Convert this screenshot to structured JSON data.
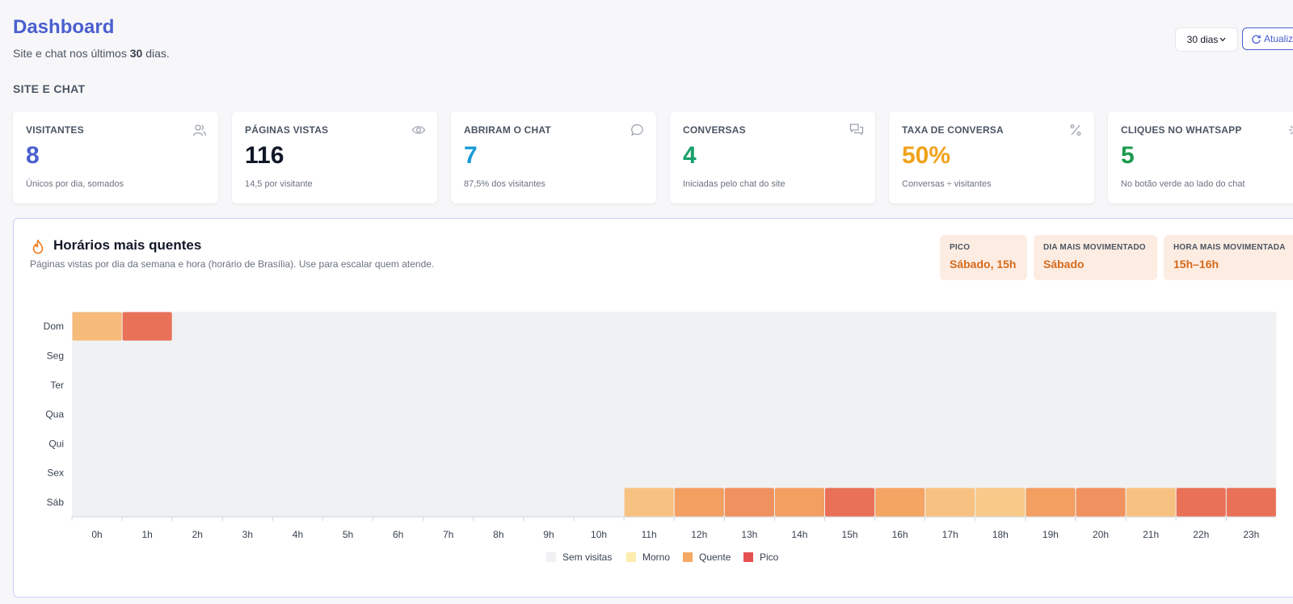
{
  "header": {
    "title": "Dashboard",
    "subtitle_prefix": "Site e chat nos últimos ",
    "subtitle_days": "30",
    "subtitle_suffix": " dias.",
    "range_select": "30 dias",
    "refresh_label": "Atualizar"
  },
  "section_label": "SITE E CHAT",
  "kpis": [
    {
      "label": "VISITANTES",
      "value": "8",
      "note": "Únicos por dia, somados",
      "icon": "users-icon",
      "color": "#4a5fcf"
    },
    {
      "label": "PÁGINAS VISTAS",
      "value": "116",
      "note": "14,5 por visitante",
      "icon": "eye-icon",
      "color": "#111827"
    },
    {
      "label": "ABRIRAM O CHAT",
      "value": "7",
      "note": "87,5% dos visitantes",
      "icon": "chat-bubble-icon",
      "color": "#1a9bd7"
    },
    {
      "label": "CONVERSAS",
      "value": "4",
      "note": "Iniciadas pelo chat do site",
      "icon": "conversations-icon",
      "color": "#18a06b"
    },
    {
      "label": "TAXA DE CONVERSA",
      "value": "50%",
      "note": "Conversas ÷ visitantes",
      "icon": "percent-icon",
      "color": "#f0a21a"
    },
    {
      "label": "CLIQUES NO WHATSAPP",
      "value": "5",
      "note": "No botão verde ao lado do chat",
      "icon": "sparkle-icon",
      "color": "#1b9a4b"
    }
  ],
  "heatmap_card": {
    "title": "Horários mais quentes",
    "subtitle": "Páginas vistas por dia da semana e hora (horário de Brasília). Use para escalar quem atende.",
    "stats": [
      {
        "label": "PICO",
        "value": "Sábado, 15h"
      },
      {
        "label": "DIA MAIS MOVIMENTADO",
        "value": "Sábado"
      },
      {
        "label": "HORA MAIS MOVIMENTADA",
        "value": "15h–16h"
      }
    ]
  },
  "chart_data": {
    "type": "heatmap",
    "days": [
      "Dom",
      "Seg",
      "Ter",
      "Qua",
      "Qui",
      "Sex",
      "Sáb"
    ],
    "hours": [
      "0h",
      "1h",
      "2h",
      "3h",
      "4h",
      "5h",
      "6h",
      "7h",
      "8h",
      "9h",
      "10h",
      "11h",
      "12h",
      "13h",
      "14h",
      "15h",
      "16h",
      "17h",
      "18h",
      "19h",
      "20h",
      "21h",
      "22h",
      "23h"
    ],
    "levels": [
      "Sem visitas",
      "Morno",
      "Quente",
      "Pico"
    ],
    "level_colors": [
      "#f0f1f3",
      "#fde9a0",
      "#f59a4a",
      "#e03131"
    ],
    "intensity": [
      [
        0.35,
        0.8,
        0,
        0,
        0,
        0,
        0,
        0,
        0,
        0,
        0,
        0,
        0,
        0,
        0,
        0,
        0,
        0,
        0,
        0,
        0,
        0,
        0,
        0
      ],
      [
        0,
        0,
        0,
        0,
        0,
        0,
        0,
        0,
        0,
        0,
        0,
        0,
        0,
        0,
        0,
        0,
        0,
        0,
        0,
        0,
        0,
        0,
        0,
        0
      ],
      [
        0,
        0,
        0,
        0,
        0,
        0,
        0,
        0,
        0,
        0,
        0,
        0,
        0,
        0,
        0,
        0,
        0,
        0,
        0,
        0,
        0,
        0,
        0,
        0
      ],
      [
        0,
        0,
        0,
        0,
        0,
        0,
        0,
        0,
        0,
        0,
        0,
        0,
        0,
        0,
        0,
        0,
        0,
        0,
        0,
        0,
        0,
        0,
        0,
        0
      ],
      [
        0,
        0,
        0,
        0,
        0,
        0,
        0,
        0,
        0,
        0,
        0,
        0,
        0,
        0,
        0,
        0,
        0,
        0,
        0,
        0,
        0,
        0,
        0,
        0
      ],
      [
        0,
        0,
        0,
        0,
        0,
        0,
        0,
        0,
        0,
        0,
        0,
        0,
        0,
        0,
        0,
        0,
        0,
        0,
        0,
        0,
        0,
        0,
        0,
        0
      ],
      [
        0,
        0,
        0,
        0,
        0,
        0,
        0,
        0,
        0,
        0,
        0,
        0.3,
        0.55,
        0.62,
        0.55,
        0.8,
        0.52,
        0.3,
        0.25,
        0.55,
        0.62,
        0.3,
        0.8,
        0.8
      ]
    ],
    "legend_position": "bottom-center"
  }
}
